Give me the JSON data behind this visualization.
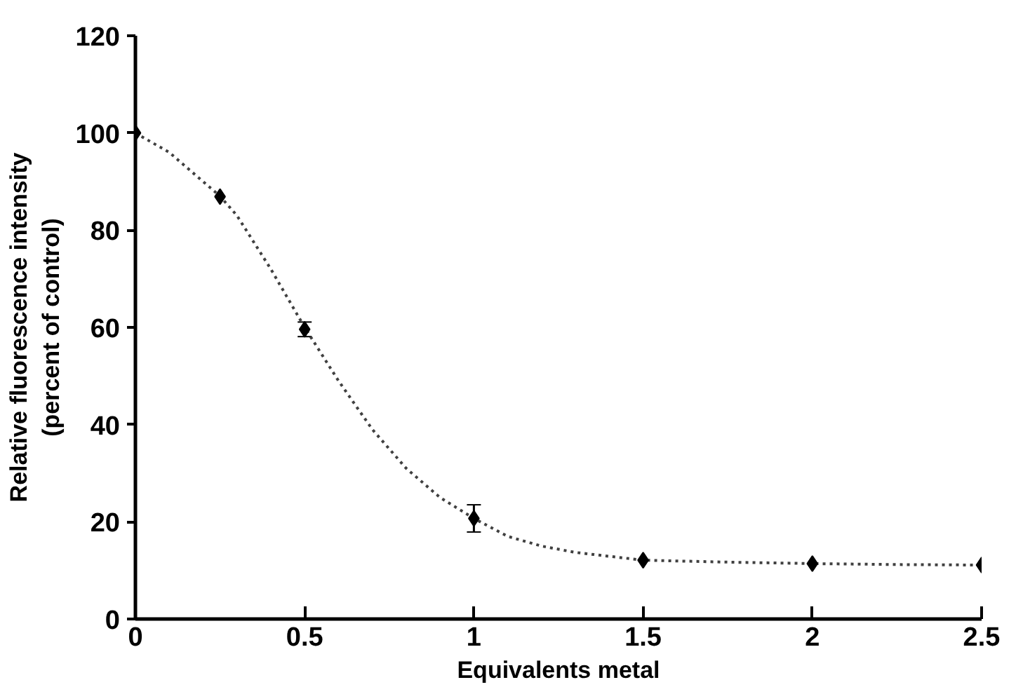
{
  "chart_data": {
    "type": "scatter",
    "xlabel": "Equivalents metal",
    "ylabel": "Relative fluorescence intensity\n(percent of control)",
    "xlim": [
      0,
      2.5
    ],
    "ylim": [
      0,
      120
    ],
    "xticks": [
      0,
      0.5,
      1,
      1.5,
      2,
      2.5
    ],
    "yticks": [
      0,
      20,
      40,
      60,
      80,
      100,
      120
    ],
    "grid": false,
    "marker": "diamond",
    "series": [
      {
        "type": "line",
        "color": "#404040",
        "line_style": "dotted",
        "marker": "none",
        "x": [
          0,
          0.1,
          0.2,
          0.25,
          0.3,
          0.4,
          0.5,
          0.6,
          0.7,
          0.8,
          0.9,
          1.0,
          1.1,
          1.2,
          1.3,
          1.5,
          1.75,
          2.0,
          2.25,
          2.5
        ],
        "values": [
          100,
          96,
          90,
          87,
          83,
          72,
          60,
          49,
          39,
          31,
          25,
          20.7,
          17,
          15,
          13.7,
          12.1,
          11.7,
          11.4,
          11.2,
          11.1
        ]
      },
      {
        "color": "#000000",
        "x": [
          0,
          0.25,
          0.5,
          1.0,
          1.5,
          2.0,
          2.5
        ],
        "values": [
          100,
          86.9,
          59.6,
          20.7,
          12.1,
          11.4,
          11.1
        ],
        "errors": [
          null,
          null,
          1.5,
          2.8,
          null,
          null,
          null
        ]
      }
    ]
  }
}
